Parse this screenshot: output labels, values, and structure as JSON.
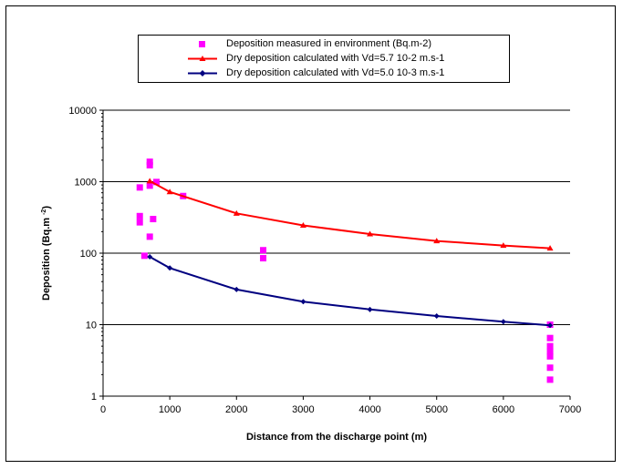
{
  "chart_data": {
    "type": "scatter",
    "xlabel": "Distance from the discharge point (m)",
    "ylabel": "Deposition (Bq.m ",
    "ylabel_superscript": "-2",
    "ylabel_close": ")",
    "xlim": [
      0,
      7000
    ],
    "ylim": [
      1,
      10000
    ],
    "yscale": "log",
    "grid": "horizontal major lines",
    "legend_position": "top",
    "x_ticks": [
      "0",
      "1000",
      "2000",
      "3000",
      "4000",
      "5000",
      "6000",
      "7000"
    ],
    "y_ticks": [
      "1",
      "10",
      "100",
      "1000",
      "10000"
    ],
    "series": [
      {
        "name": "Deposition measured in environment (Bq.m-2)",
        "kind": "scatter",
        "marker": "square",
        "color": "#ff00ff",
        "points": [
          [
            550,
            830
          ],
          [
            550,
            330
          ],
          [
            550,
            270
          ],
          [
            620,
            92
          ],
          [
            700,
            1900
          ],
          [
            700,
            1700
          ],
          [
            700,
            880
          ],
          [
            700,
            170
          ],
          [
            750,
            300
          ],
          [
            800,
            990
          ],
          [
            1200,
            630
          ],
          [
            2400,
            110
          ],
          [
            2400,
            85
          ],
          [
            6700,
            10
          ],
          [
            6700,
            6.5
          ],
          [
            6700,
            5
          ],
          [
            6700,
            4.2
          ],
          [
            6700,
            3.6
          ],
          [
            6700,
            2.5
          ],
          [
            6700,
            1.7
          ]
        ]
      },
      {
        "name": "Dry deposition calculated with Vd=5.7 10-2 m.s-1",
        "kind": "line",
        "marker": "triangle",
        "color": "#ff0000",
        "points": [
          [
            700,
            1020
          ],
          [
            1000,
            720
          ],
          [
            2000,
            360
          ],
          [
            3000,
            245
          ],
          [
            4000,
            185
          ],
          [
            5000,
            148
          ],
          [
            6000,
            128
          ],
          [
            6700,
            117
          ]
        ]
      },
      {
        "name": "Dry deposition calculated with Vd=5.0 10-3 m.s-1",
        "kind": "line",
        "marker": "diamond",
        "color": "#000080",
        "points": [
          [
            700,
            89
          ],
          [
            1000,
            62
          ],
          [
            2000,
            31
          ],
          [
            3000,
            21
          ],
          [
            4000,
            16.3
          ],
          [
            5000,
            13.2
          ],
          [
            6000,
            11
          ],
          [
            6700,
            9.8
          ]
        ]
      }
    ]
  }
}
